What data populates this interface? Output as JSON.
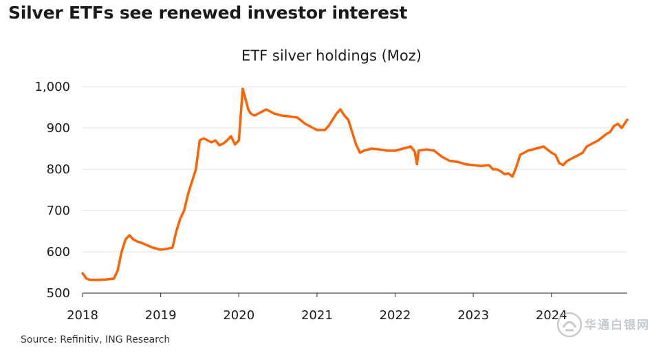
{
  "headline": "Silver ETFs see renewed investor interest",
  "source": "Source: Refinitiv, ING Research",
  "watermark": {
    "text": "华通白银网",
    "icon": "logo-icon"
  },
  "colors": {
    "series": "#ff6200",
    "grid": "#e6e6e6",
    "axis": "#4d4d4d"
  },
  "chart_data": {
    "type": "line",
    "title": "ETF silver holdings (Moz)",
    "xlabel": "",
    "ylabel": "",
    "xlim": [
      2018.0,
      2024.97
    ],
    "ylim": [
      500,
      1000
    ],
    "x_ticks": [
      "2018",
      "2019",
      "2020",
      "2021",
      "2022",
      "2023",
      "2024"
    ],
    "y_ticks": [
      "1,000",
      "900",
      "800",
      "700",
      "600",
      "500"
    ],
    "y_tick_values": [
      1000,
      900,
      800,
      700,
      600,
      500
    ],
    "grid": true,
    "legend": "none",
    "series": [
      {
        "x": [
          2018.0,
          2018.05,
          2018.1,
          2018.2,
          2018.3,
          2018.4,
          2018.45,
          2018.5,
          2018.55,
          2018.6,
          2018.65,
          2018.7,
          2018.75,
          2018.8,
          2018.9,
          2019.0,
          2019.1,
          2019.15,
          2019.2,
          2019.25,
          2019.3,
          2019.35,
          2019.4,
          2019.45,
          2019.5,
          2019.55,
          2019.6,
          2019.65,
          2019.7,
          2019.75,
          2019.8,
          2019.85,
          2019.9,
          2019.95,
          2020.0,
          2020.05,
          2020.1,
          2020.12,
          2020.15,
          2020.2,
          2020.25,
          2020.35,
          2020.45,
          2020.55,
          2020.65,
          2020.75,
          2020.85,
          2020.95,
          2021.0,
          2021.1,
          2021.15,
          2021.25,
          2021.3,
          2021.35,
          2021.4,
          2021.45,
          2021.5,
          2021.55,
          2021.6,
          2021.7,
          2021.8,
          2021.9,
          2022.0,
          2022.1,
          2022.2,
          2022.25,
          2022.28,
          2022.3,
          2022.4,
          2022.5,
          2022.6,
          2022.7,
          2022.8,
          2022.9,
          2023.0,
          2023.1,
          2023.2,
          2023.25,
          2023.3,
          2023.35,
          2023.4,
          2023.45,
          2023.5,
          2023.55,
          2023.6,
          2023.7,
          2023.8,
          2023.9,
          2024.0,
          2024.05,
          2024.1,
          2024.15,
          2024.2,
          2024.3,
          2024.4,
          2024.45,
          2024.5,
          2024.6,
          2024.7,
          2024.75,
          2024.8,
          2024.85,
          2024.9,
          2024.97
        ],
        "y": [
          548,
          535,
          532,
          532,
          533,
          535,
          555,
          600,
          630,
          640,
          630,
          625,
          622,
          618,
          610,
          605,
          608,
          610,
          650,
          680,
          700,
          740,
          770,
          800,
          870,
          875,
          870,
          865,
          870,
          858,
          862,
          870,
          880,
          860,
          870,
          995,
          960,
          945,
          935,
          930,
          935,
          945,
          935,
          930,
          928,
          925,
          910,
          900,
          895,
          895,
          905,
          935,
          945,
          930,
          920,
          890,
          860,
          840,
          845,
          850,
          848,
          845,
          845,
          850,
          855,
          843,
          812,
          845,
          848,
          845,
          830,
          820,
          818,
          812,
          810,
          808,
          810,
          800,
          800,
          795,
          788,
          790,
          782,
          805,
          835,
          845,
          850,
          855,
          840,
          835,
          815,
          810,
          820,
          830,
          840,
          855,
          860,
          870,
          885,
          890,
          905,
          910,
          900,
          920
        ]
      }
    ]
  }
}
